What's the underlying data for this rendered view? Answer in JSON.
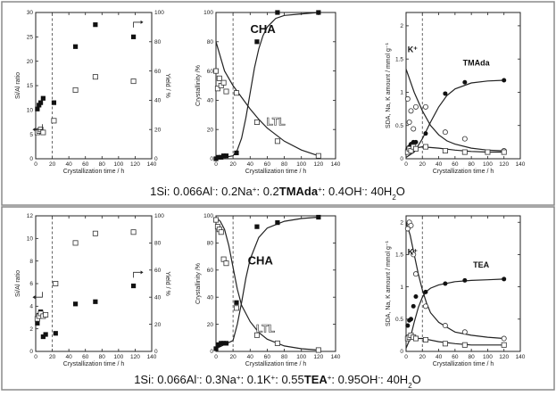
{
  "captions": [
    {
      "parts": [
        {
          "t": "1Si: 0.066Al"
        },
        {
          "t": "-",
          "s": "sup"
        },
        {
          "t": ": 0.2Na"
        },
        {
          "t": "+",
          "s": "sup"
        },
        {
          "t": ": 0.2"
        },
        {
          "t": "TMAda",
          "b": true
        },
        {
          "t": "+",
          "s": "sup"
        },
        {
          "t": ": 0.4OH"
        },
        {
          "t": "-",
          "s": "sup"
        },
        {
          "t": ": 40H"
        },
        {
          "t": "2",
          "s": "sub"
        },
        {
          "t": "O"
        }
      ]
    },
    {
      "parts": [
        {
          "t": "1Si: 0.066Al"
        },
        {
          "t": "-",
          "s": "sup"
        },
        {
          "t": ": 0.3Na"
        },
        {
          "t": "+",
          "s": "sup"
        },
        {
          "t": ": 0.1K"
        },
        {
          "t": "+",
          "s": "sup"
        },
        {
          "t": ": 0.55"
        },
        {
          "t": "TEA",
          "b": true
        },
        {
          "t": "+",
          "s": "sup"
        },
        {
          "t": ": 0.95OH"
        },
        {
          "t": "-",
          "s": "sup"
        },
        {
          "t": ": 40H"
        },
        {
          "t": "2",
          "s": "sub"
        },
        {
          "t": "O"
        }
      ]
    }
  ],
  "chart_data": [
    {
      "id": "a1",
      "row": 0,
      "col": 0,
      "type": "scatter",
      "xlabel": "Crystallization time / h",
      "ylabel": "Si/Al ratio",
      "y2label": "Yield / %",
      "xlim": [
        0,
        140
      ],
      "ylim": [
        0,
        30
      ],
      "y2lim": [
        0,
        100
      ],
      "xticks": [
        0,
        20,
        40,
        60,
        80,
        100,
        120,
        140
      ],
      "yticks": [
        0,
        5,
        10,
        15,
        20,
        25,
        30
      ],
      "y2ticks": [
        0,
        20,
        40,
        60,
        80,
        100
      ],
      "dashed_x": 20,
      "series": [
        {
          "marker": "filled-square",
          "axis": "y",
          "x": [
            2,
            4,
            6,
            9,
            22,
            48,
            72,
            118
          ],
          "y": [
            10.2,
            11.0,
            11.5,
            12.4,
            11.5,
            23.0,
            27.5,
            25.0
          ]
        },
        {
          "marker": "open-square",
          "axis": "y2",
          "x": [
            2,
            4,
            6,
            9,
            22,
            48,
            72,
            118
          ],
          "y": [
            18,
            19,
            20,
            18,
            26,
            47,
            56,
            53
          ]
        }
      ],
      "arrows": [
        {
          "x": 8,
          "y": 6,
          "dir": "left"
        },
        {
          "x": 118,
          "y": 28,
          "dir": "right"
        }
      ]
    },
    {
      "id": "a2",
      "row": 0,
      "col": 1,
      "type": "line",
      "xlabel": "Crystallization time / h",
      "ylabel": "Crystallinity /%",
      "xlim": [
        0,
        140
      ],
      "ylim": [
        0,
        100
      ],
      "xticks": [
        0,
        20,
        40,
        60,
        80,
        100,
        120,
        140
      ],
      "yticks": [
        0,
        20,
        40,
        60,
        80,
        100
      ],
      "dashed_x": 20,
      "labels": [
        {
          "text": "CHA",
          "x": 55,
          "y": 86,
          "style": "big"
        },
        {
          "text": "LTL",
          "x": 70,
          "y": 23,
          "style": "ltl"
        }
      ],
      "series": [
        {
          "name": "CHA",
          "marker": "filled-square",
          "x": [
            0,
            3,
            6,
            9,
            12,
            24,
            48,
            72,
            120
          ],
          "y": [
            0,
            1,
            1,
            2,
            2,
            4,
            80,
            100,
            100
          ],
          "curve_x": [
            0,
            20,
            25,
            30,
            35,
            40,
            45,
            50,
            55,
            60,
            70,
            80,
            100,
            120
          ],
          "curve_y": [
            0,
            2,
            6,
            14,
            28,
            45,
            62,
            75,
            84,
            90,
            96,
            98,
            99,
            100
          ]
        },
        {
          "name": "LTL",
          "marker": "open-square",
          "x": [
            0,
            2,
            4,
            6,
            9,
            12,
            24,
            48,
            72,
            120
          ],
          "y": [
            60,
            48,
            55,
            50,
            52,
            46,
            45,
            25,
            12,
            2
          ],
          "curve_x": [
            0,
            10,
            20,
            30,
            40,
            50,
            60,
            80,
            100,
            120
          ],
          "curve_y": [
            80,
            60,
            50,
            42,
            34,
            27,
            21,
            12,
            6,
            2
          ]
        }
      ]
    },
    {
      "id": "a3",
      "row": 0,
      "col": 2,
      "type": "line",
      "xlabel": "Crystallization time / h",
      "ylabel": "SDA, Na, K amount / mmol g⁻¹",
      "xlim": [
        0,
        140
      ],
      "ylim": [
        0,
        2.2
      ],
      "xticks": [
        0,
        20,
        40,
        60,
        80,
        100,
        120,
        140
      ],
      "yticks": [
        0,
        0.5,
        1,
        1.5,
        2
      ],
      "dashed_x": 20,
      "labels": [
        {
          "text": "TMAda",
          "x": 86,
          "y": 1.4,
          "style": "mid"
        },
        {
          "text": "K⁺",
          "x": 8,
          "y": 1.6,
          "style": "mid"
        }
      ],
      "series": [
        {
          "name": "TMAda",
          "marker": "filled-circle",
          "x": [
            2,
            4,
            6,
            9,
            12,
            24,
            48,
            72,
            120
          ],
          "y": [
            0.15,
            0.18,
            0.22,
            0.25,
            0.25,
            0.38,
            0.98,
            1.15,
            1.18
          ],
          "curve_x": [
            0,
            10,
            20,
            30,
            40,
            50,
            60,
            80,
            100,
            120
          ],
          "curve_y": [
            0.02,
            0.1,
            0.3,
            0.55,
            0.78,
            0.95,
            1.05,
            1.14,
            1.17,
            1.18
          ]
        },
        {
          "name": "K",
          "marker": "open-circle",
          "x": [
            2,
            4,
            6,
            9,
            12,
            24,
            48,
            72,
            120
          ],
          "y": [
            0.9,
            0.55,
            0.72,
            0.45,
            0.78,
            0.78,
            0.4,
            0.3,
            0.12
          ],
          "curve_x": [
            0,
            10,
            20,
            30,
            40,
            50,
            60,
            80,
            100,
            120
          ],
          "curve_y": [
            1.35,
            1.0,
            0.72,
            0.5,
            0.36,
            0.27,
            0.22,
            0.16,
            0.13,
            0.12
          ]
        },
        {
          "name": "Na",
          "marker": "open-square",
          "x": [
            2,
            4,
            6,
            9,
            12,
            24,
            48,
            72,
            100,
            120
          ],
          "y": [
            0.1,
            0.15,
            0.12,
            0.18,
            0.15,
            0.18,
            0.12,
            0.1,
            0.1,
            0.1
          ],
          "curve_x": [
            0,
            10,
            20,
            40,
            60,
            80,
            100,
            120
          ],
          "curve_y": [
            0.12,
            0.16,
            0.18,
            0.16,
            0.13,
            0.11,
            0.1,
            0.1
          ]
        }
      ]
    },
    {
      "id": "b1",
      "row": 1,
      "col": 0,
      "type": "scatter",
      "xlabel": "Crystallization time / h",
      "ylabel": "Si/Al ratio",
      "y2label": "Yield / %",
      "xlim": [
        0,
        140
      ],
      "ylim": [
        0,
        12
      ],
      "y2lim": [
        0,
        100
      ],
      "xticks": [
        0,
        20,
        40,
        60,
        80,
        100,
        120,
        140
      ],
      "yticks": [
        0,
        2,
        4,
        6,
        8,
        10,
        12
      ],
      "y2ticks": [
        0,
        20,
        40,
        60,
        80,
        100
      ],
      "dashed_x": 20,
      "series": [
        {
          "marker": "filled-square",
          "axis": "y",
          "x": [
            2,
            4,
            6,
            9,
            12,
            24,
            48,
            72,
            118
          ],
          "y": [
            2.5,
            3.2,
            3.5,
            1.3,
            1.5,
            1.6,
            4.2,
            4.4,
            5.8
          ]
        },
        {
          "marker": "open-square",
          "axis": "y2",
          "x": [
            2,
            4,
            6,
            9,
            12,
            24,
            48,
            72,
            118
          ],
          "y": [
            24,
            26,
            28,
            26,
            27,
            50,
            80,
            87,
            88
          ]
        }
      ],
      "arrows": [
        {
          "x": 8,
          "y": 4.8,
          "dir": "left"
        },
        {
          "x": 118,
          "y": 7,
          "dir": "right"
        }
      ]
    },
    {
      "id": "b2",
      "row": 1,
      "col": 1,
      "type": "line",
      "xlabel": "Crystallization time / h",
      "ylabel": "Crystallinity /%",
      "xlim": [
        0,
        140
      ],
      "ylim": [
        0,
        100
      ],
      "xticks": [
        0,
        20,
        40,
        60,
        80,
        100,
        120,
        140
      ],
      "yticks": [
        0,
        20,
        40,
        60,
        80,
        100
      ],
      "dashed_x": 20,
      "labels": [
        {
          "text": "CHA",
          "x": 52,
          "y": 64,
          "style": "big"
        },
        {
          "text": "LTL",
          "x": 58,
          "y": 14,
          "style": "ltl"
        }
      ],
      "series": [
        {
          "name": "CHA",
          "marker": "filled-square",
          "x": [
            0,
            3,
            6,
            9,
            12,
            24,
            48,
            72,
            120
          ],
          "y": [
            2,
            5,
            6,
            6,
            6,
            36,
            92,
            95,
            99
          ],
          "curve_x": [
            0,
            20,
            25,
            30,
            35,
            40,
            50,
            60,
            80,
            100,
            120
          ],
          "curve_y": [
            2,
            8,
            20,
            36,
            54,
            68,
            84,
            91,
            96,
            98,
            99
          ]
        },
        {
          "name": "LTL",
          "marker": "open-square",
          "x": [
            0,
            2,
            4,
            6,
            9,
            12,
            24,
            48,
            72,
            120
          ],
          "y": [
            97,
            92,
            90,
            88,
            68,
            65,
            32,
            12,
            6,
            1
          ],
          "curve_x": [
            0,
            5,
            10,
            15,
            20,
            25,
            30,
            40,
            50,
            60,
            80,
            100,
            120
          ],
          "curve_y": [
            99,
            96,
            90,
            78,
            62,
            46,
            34,
            22,
            14,
            9,
            4,
            2,
            1
          ]
        }
      ]
    },
    {
      "id": "b3",
      "row": 1,
      "col": 2,
      "type": "line",
      "xlabel": "Crystallization time / h",
      "ylabel": "SDA, Na, K amount / mmol g⁻¹",
      "xlim": [
        0,
        140
      ],
      "ylim": [
        0,
        2.1
      ],
      "xticks": [
        0,
        20,
        40,
        60,
        80,
        100,
        120,
        140
      ],
      "yticks": [
        0,
        0.5,
        1,
        1.5,
        2
      ],
      "dashed_x": 20,
      "labels": [
        {
          "text": "TEA",
          "x": 92,
          "y": 1.3,
          "style": "mid"
        },
        {
          "text": "K⁺",
          "x": 8,
          "y": 1.5,
          "style": "mid"
        }
      ],
      "series": [
        {
          "name": "TEA",
          "marker": "filled-circle",
          "x": [
            2,
            4,
            6,
            9,
            12,
            24,
            48,
            72,
            120
          ],
          "y": [
            0.4,
            0.48,
            0.5,
            0.7,
            0.85,
            0.92,
            1.05,
            1.1,
            1.12
          ],
          "curve_x": [
            0,
            5,
            10,
            15,
            20,
            25,
            30,
            40,
            60,
            80,
            100,
            120
          ],
          "curve_y": [
            0.05,
            0.2,
            0.45,
            0.68,
            0.84,
            0.93,
            0.98,
            1.03,
            1.08,
            1.1,
            1.11,
            1.12
          ]
        },
        {
          "name": "K",
          "marker": "open-circle",
          "x": [
            2,
            4,
            6,
            9,
            12,
            24,
            48,
            72,
            120
          ],
          "y": [
            1.9,
            2.0,
            1.95,
            1.5,
            1.2,
            0.7,
            0.4,
            0.3,
            0.2
          ],
          "curve_x": [
            0,
            5,
            10,
            15,
            20,
            25,
            30,
            40,
            60,
            80,
            100,
            120
          ],
          "curve_y": [
            2.0,
            1.8,
            1.5,
            1.2,
            0.95,
            0.75,
            0.6,
            0.45,
            0.3,
            0.25,
            0.22,
            0.2
          ]
        },
        {
          "name": "Na",
          "marker": "open-square",
          "x": [
            2,
            4,
            6,
            9,
            12,
            24,
            48,
            72,
            120
          ],
          "y": [
            0.2,
            0.22,
            0.25,
            0.22,
            0.2,
            0.18,
            0.12,
            0.1,
            0.1
          ],
          "curve_x": [
            0,
            20,
            40,
            60,
            80,
            100,
            120
          ],
          "curve_y": [
            0.2,
            0.2,
            0.15,
            0.12,
            0.1,
            0.1,
            0.1
          ]
        }
      ]
    }
  ]
}
